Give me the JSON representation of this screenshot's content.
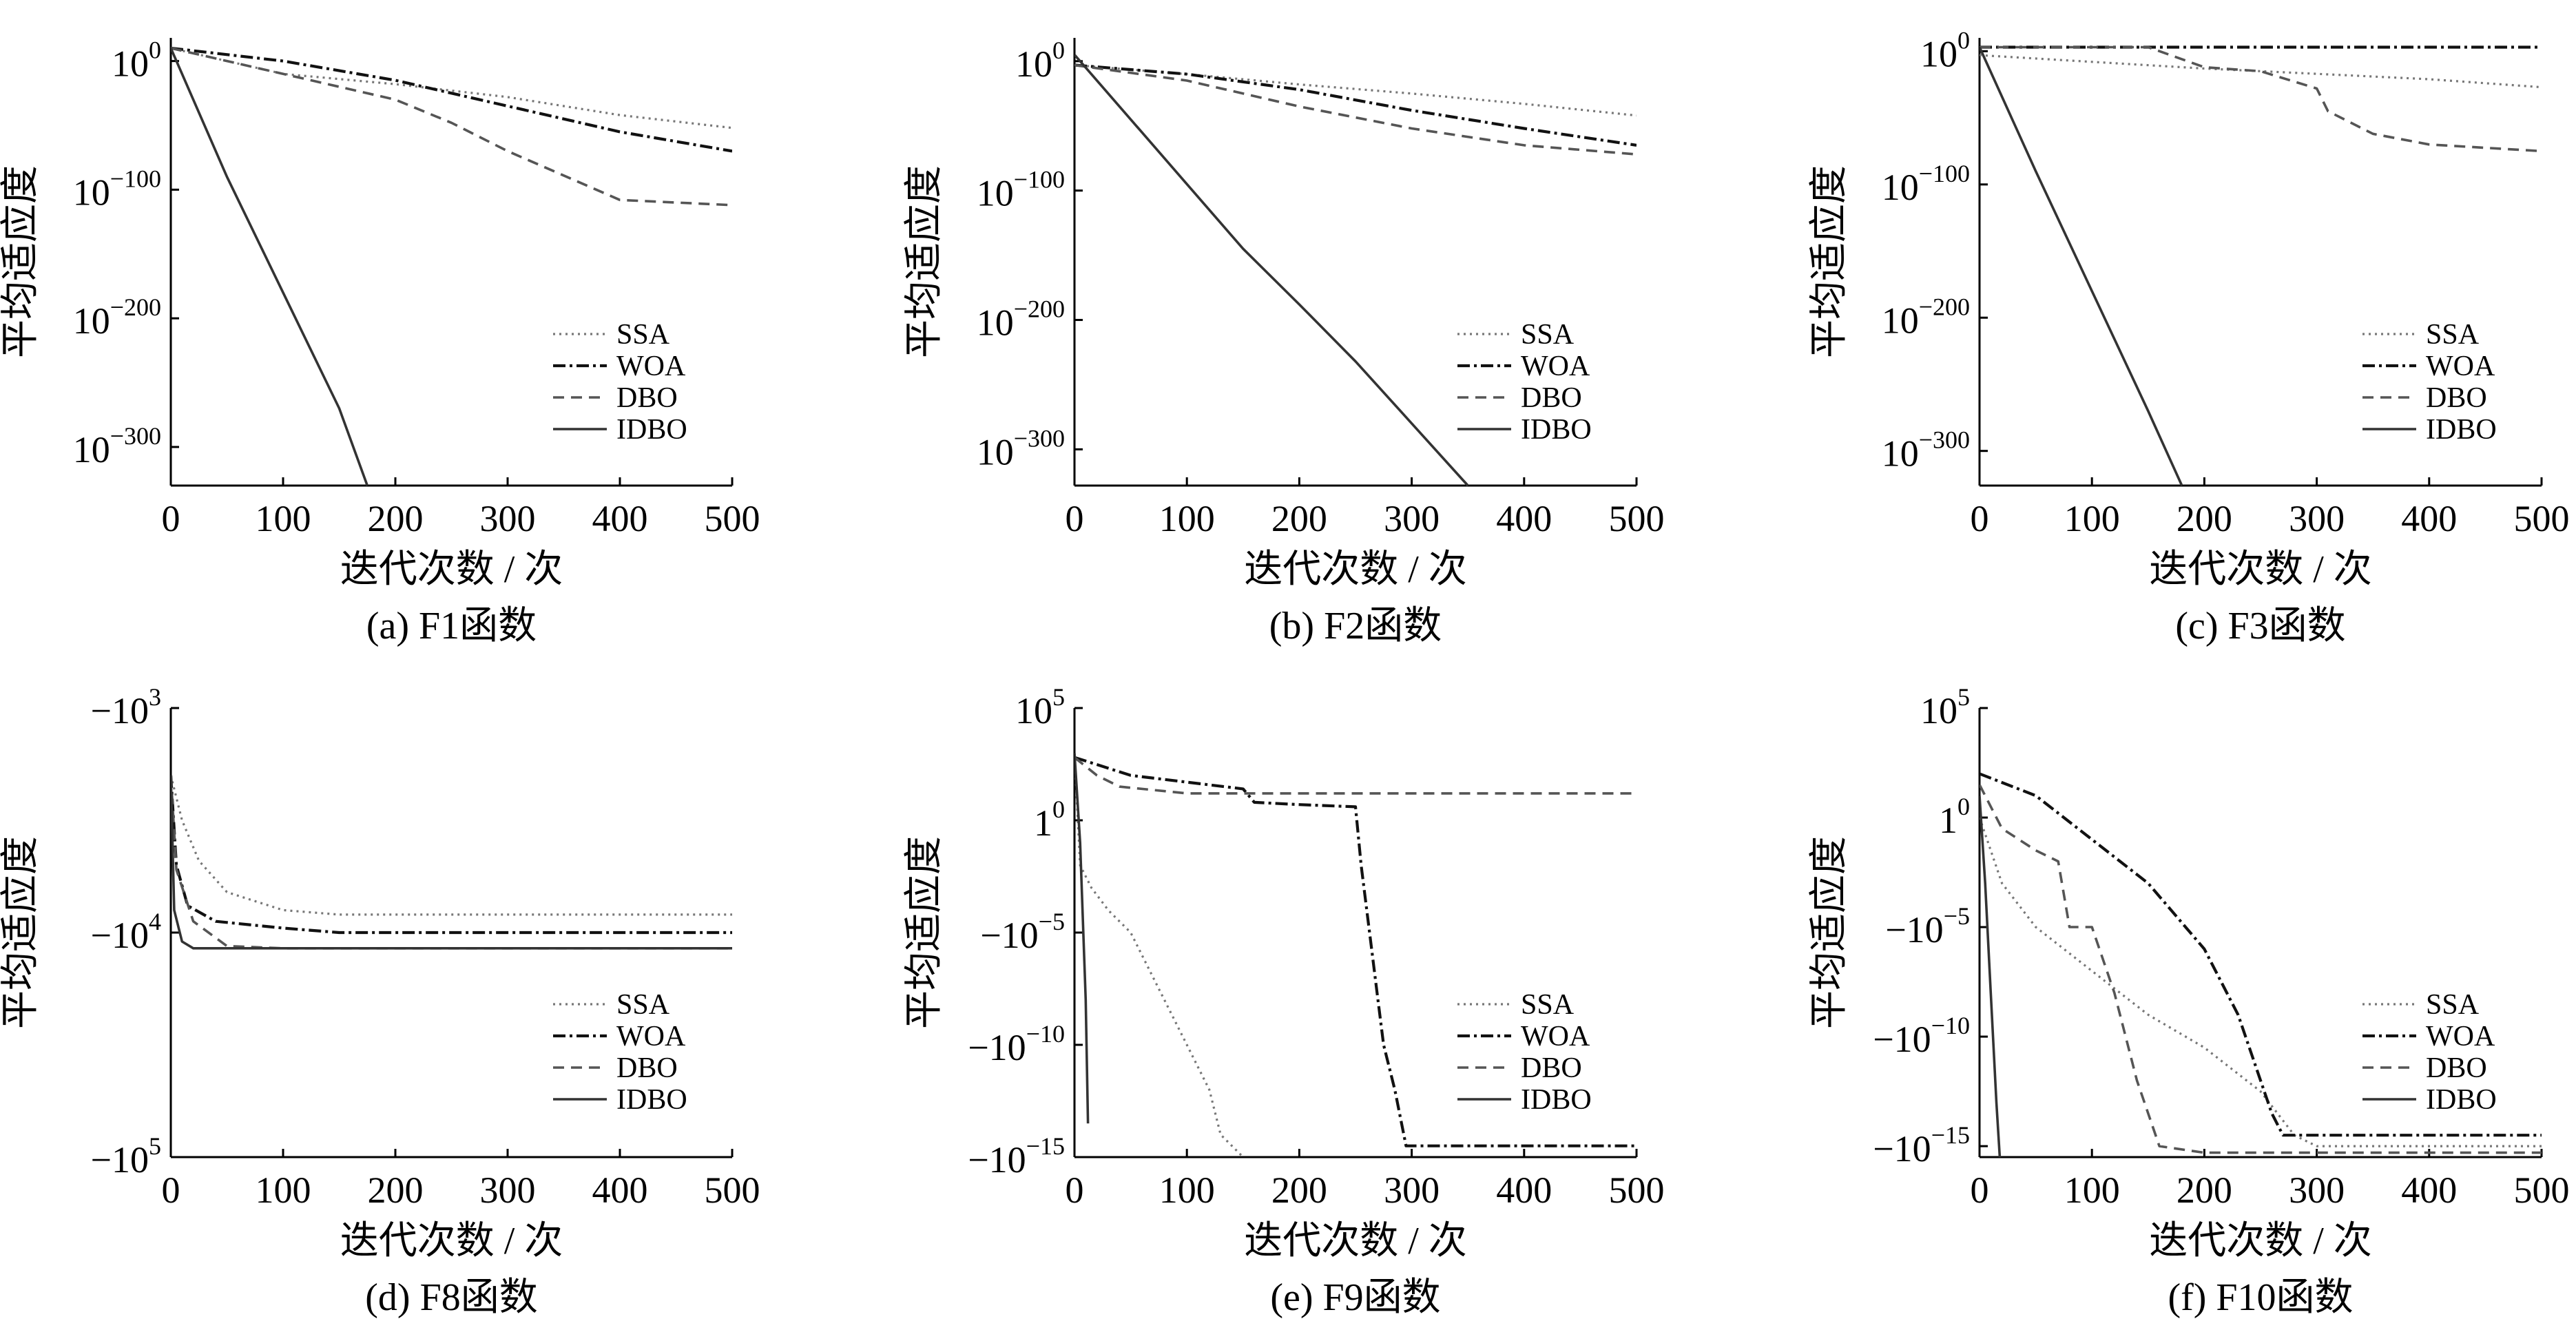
{
  "figure": {
    "y_label": "平均适应度",
    "x_label": "迭代次数 / 次"
  },
  "chart_data": [
    {
      "id": "a",
      "type": "line",
      "title": "(a)  F1函数",
      "yscale": "log",
      "ylim": [
        -330,
        18
      ],
      "y_ticks": [
        {
          "v": 0,
          "base": "10",
          "exp": "0"
        },
        {
          "v": -100,
          "base": "10",
          "exp": "−100"
        },
        {
          "v": -200,
          "base": "10",
          "exp": "−200"
        },
        {
          "v": -300,
          "base": "10",
          "exp": "−300"
        }
      ],
      "xlim": [
        0,
        500
      ],
      "x_ticks": [
        0,
        100,
        200,
        300,
        400,
        500
      ],
      "legend": [
        "SSA",
        "WOA",
        "DBO",
        "IDBO"
      ],
      "series": [
        {
          "name": "SSA",
          "style": "dotted",
          "points": [
            [
              0,
              10
            ],
            [
              100,
              -10
            ],
            [
              200,
              -18
            ],
            [
              300,
              -28
            ],
            [
              400,
              -42
            ],
            [
              500,
              -52
            ]
          ]
        },
        {
          "name": "WOA",
          "style": "dashdot",
          "points": [
            [
              0,
              10
            ],
            [
              100,
              0
            ],
            [
              200,
              -15
            ],
            [
              300,
              -35
            ],
            [
              400,
              -55
            ],
            [
              500,
              -70
            ]
          ]
        },
        {
          "name": "DBO",
          "style": "dashed",
          "points": [
            [
              0,
              10
            ],
            [
              100,
              -10
            ],
            [
              200,
              -30
            ],
            [
              250,
              -48
            ],
            [
              300,
              -70
            ],
            [
              400,
              -108
            ],
            [
              500,
              -112
            ]
          ]
        },
        {
          "name": "IDBO",
          "style": "solid",
          "points": [
            [
              0,
              10
            ],
            [
              50,
              -90
            ],
            [
              100,
              -180
            ],
            [
              150,
              -270
            ],
            [
              175,
              -330
            ]
          ]
        }
      ]
    },
    {
      "id": "b",
      "type": "line",
      "title": "(b)  F2函数",
      "yscale": "log",
      "ylim": [
        -328,
        18
      ],
      "y_ticks": [
        {
          "v": 0,
          "base": "10",
          "exp": "0"
        },
        {
          "v": -100,
          "base": "10",
          "exp": "−100"
        },
        {
          "v": -200,
          "base": "10",
          "exp": "−200"
        },
        {
          "v": -300,
          "base": "10",
          "exp": "−300"
        }
      ],
      "xlim": [
        0,
        500
      ],
      "x_ticks": [
        0,
        100,
        200,
        300,
        400,
        500
      ],
      "legend": [
        "SSA",
        "WOA",
        "DBO",
        "IDBO"
      ],
      "series": [
        {
          "name": "SSA",
          "style": "dotted",
          "points": [
            [
              0,
              -3
            ],
            [
              100,
              -10
            ],
            [
              200,
              -18
            ],
            [
              300,
              -25
            ],
            [
              400,
              -33
            ],
            [
              500,
              -42
            ]
          ]
        },
        {
          "name": "WOA",
          "style": "dashdot",
          "points": [
            [
              0,
              -3
            ],
            [
              100,
              -10
            ],
            [
              200,
              -22
            ],
            [
              300,
              -38
            ],
            [
              400,
              -52
            ],
            [
              500,
              -65
            ]
          ]
        },
        {
          "name": "DBO",
          "style": "dashed",
          "points": [
            [
              0,
              -3
            ],
            [
              100,
              -15
            ],
            [
              200,
              -35
            ],
            [
              300,
              -52
            ],
            [
              400,
              -65
            ],
            [
              500,
              -72
            ]
          ]
        },
        {
          "name": "IDBO",
          "style": "solid",
          "points": [
            [
              0,
              5
            ],
            [
              100,
              -95
            ],
            [
              150,
              -145
            ],
            [
              200,
              -188
            ],
            [
              250,
              -232
            ],
            [
              300,
              -280
            ],
            [
              350,
              -328
            ]
          ]
        }
      ]
    },
    {
      "id": "c",
      "type": "line",
      "title": "(c)  F3函数",
      "yscale": "log",
      "ylim": [
        -326,
        10
      ],
      "y_ticks": [
        {
          "v": 0,
          "base": "10",
          "exp": "0"
        },
        {
          "v": -100,
          "base": "10",
          "exp": "−100"
        },
        {
          "v": -200,
          "base": "10",
          "exp": "−200"
        },
        {
          "v": -300,
          "base": "10",
          "exp": "−300"
        }
      ],
      "xlim": [
        0,
        500
      ],
      "x_ticks": [
        0,
        100,
        200,
        300,
        400,
        500
      ],
      "legend": [
        "SSA",
        "WOA",
        "DBO",
        "IDBO"
      ],
      "series": [
        {
          "name": "SSA",
          "style": "dotted",
          "points": [
            [
              0,
              -3
            ],
            [
              100,
              -8
            ],
            [
              200,
              -13
            ],
            [
              300,
              -17
            ],
            [
              400,
              -21
            ],
            [
              500,
              -27
            ]
          ]
        },
        {
          "name": "WOA",
          "style": "dashdot",
          "points": [
            [
              0,
              3
            ],
            [
              500,
              3
            ]
          ]
        },
        {
          "name": "DBO",
          "style": "dashed",
          "points": [
            [
              0,
              3
            ],
            [
              150,
              3
            ],
            [
              200,
              -12
            ],
            [
              250,
              -15
            ],
            [
              300,
              -28
            ],
            [
              310,
              -45
            ],
            [
              350,
              -62
            ],
            [
              400,
              -70
            ],
            [
              500,
              -75
            ]
          ]
        },
        {
          "name": "IDBO",
          "style": "solid",
          "points": [
            [
              0,
              3
            ],
            [
              50,
              -90
            ],
            [
              100,
              -180
            ],
            [
              150,
              -270
            ],
            [
              180,
              -326
            ]
          ]
        }
      ]
    },
    {
      "id": "d",
      "type": "line",
      "title": "(d)  F8函数",
      "yscale": "log-negative",
      "ylim": [
        -5,
        -3
      ],
      "y_ticks": [
        {
          "v": -3,
          "base": "−10",
          "exp": "3"
        },
        {
          "v": -4,
          "base": "−10",
          "exp": "4"
        },
        {
          "v": -5,
          "base": "−10",
          "exp": "5"
        }
      ],
      "xlim": [
        0,
        500
      ],
      "x_ticks": [
        0,
        100,
        200,
        300,
        400,
        500
      ],
      "legend": [
        "SSA",
        "WOA",
        "DBO",
        "IDBO"
      ],
      "series": [
        {
          "name": "SSA",
          "style": "dotted",
          "points": [
            [
              0,
              -3.3
            ],
            [
              10,
              -3.5
            ],
            [
              25,
              -3.68
            ],
            [
              50,
              -3.82
            ],
            [
              100,
              -3.9
            ],
            [
              150,
              -3.92
            ],
            [
              500,
              -3.92
            ]
          ]
        },
        {
          "name": "WOA",
          "style": "dashdot",
          "points": [
            [
              0,
              -3.3
            ],
            [
              5,
              -3.7
            ],
            [
              15,
              -3.88
            ],
            [
              40,
              -3.95
            ],
            [
              100,
              -3.98
            ],
            [
              150,
              -4.0
            ],
            [
              500,
              -4.0
            ]
          ]
        },
        {
          "name": "DBO",
          "style": "dashed",
          "points": [
            [
              0,
              -3.3
            ],
            [
              5,
              -3.72
            ],
            [
              20,
              -3.95
            ],
            [
              50,
              -4.06
            ],
            [
              100,
              -4.07
            ],
            [
              500,
              -4.07
            ]
          ]
        },
        {
          "name": "IDBO",
          "style": "solid",
          "points": [
            [
              0,
              -3.3
            ],
            [
              3,
              -3.9
            ],
            [
              10,
              -4.04
            ],
            [
              20,
              -4.07
            ],
            [
              500,
              -4.07
            ]
          ]
        }
      ]
    },
    {
      "id": "e",
      "type": "line",
      "title": "(e)  F9函数",
      "yscale": "symlog",
      "ylim": [
        -15,
        5
      ],
      "y_ticks": [
        {
          "v": 5,
          "base": "10",
          "exp": "5"
        },
        {
          "v": 0,
          "base": "1",
          "exp": "0"
        },
        {
          "v": -5,
          "base": "−10",
          "exp": "−5"
        },
        {
          "v": -10,
          "base": "−10",
          "exp": "−10"
        },
        {
          "v": -15,
          "base": "−10",
          "exp": "−15"
        }
      ],
      "xlim": [
        0,
        500
      ],
      "x_ticks": [
        0,
        100,
        200,
        300,
        400,
        500
      ],
      "legend": [
        "SSA",
        "WOA",
        "DBO",
        "IDBO"
      ],
      "series": [
        {
          "name": "SSA",
          "style": "dotted",
          "points": [
            [
              0,
              3
            ],
            [
              5,
              -2
            ],
            [
              15,
              -3
            ],
            [
              30,
              -4
            ],
            [
              50,
              -5
            ],
            [
              70,
              -7
            ],
            [
              90,
              -9
            ],
            [
              110,
              -11
            ],
            [
              120,
              -12
            ],
            [
              130,
              -14
            ],
            [
              150,
              -15
            ]
          ]
        },
        {
          "name": "WOA",
          "style": "dashdot",
          "points": [
            [
              0,
              2.8
            ],
            [
              50,
              2
            ],
            [
              100,
              1.7
            ],
            [
              150,
              1.4
            ],
            [
              160,
              0.8
            ],
            [
              200,
              0.7
            ],
            [
              250,
              0.6
            ],
            [
              255,
              -2
            ],
            [
              265,
              -6
            ],
            [
              270,
              -8
            ],
            [
              275,
              -10
            ],
            [
              285,
              -12
            ],
            [
              295,
              -14.5
            ],
            [
              500,
              -14.5
            ]
          ]
        },
        {
          "name": "DBO",
          "style": "dashed",
          "points": [
            [
              0,
              2.8
            ],
            [
              20,
              2
            ],
            [
              40,
              1.5
            ],
            [
              100,
              1.2
            ],
            [
              150,
              1.2
            ],
            [
              500,
              1.2
            ]
          ]
        },
        {
          "name": "IDBO",
          "style": "solid",
          "points": [
            [
              0,
              3
            ],
            [
              5,
              -1
            ],
            [
              10,
              -8
            ],
            [
              12,
              -13.5
            ]
          ]
        }
      ]
    },
    {
      "id": "f",
      "type": "line",
      "title": "(f)  F10函数",
      "yscale": "symlog",
      "ylim": [
        -15.5,
        5
      ],
      "y_ticks": [
        {
          "v": 5,
          "base": "10",
          "exp": "5"
        },
        {
          "v": 0,
          "base": "1",
          "exp": "0"
        },
        {
          "v": -5,
          "base": "−10",
          "exp": "−5"
        },
        {
          "v": -10,
          "base": "−10",
          "exp": "−10"
        },
        {
          "v": -15,
          "base": "−10",
          "exp": "−15"
        }
      ],
      "xlim": [
        0,
        500
      ],
      "x_ticks": [
        0,
        100,
        200,
        300,
        400,
        500
      ],
      "legend": [
        "SSA",
        "WOA",
        "DBO",
        "IDBO"
      ],
      "series": [
        {
          "name": "SSA",
          "style": "dotted",
          "points": [
            [
              0,
              0
            ],
            [
              20,
              -3
            ],
            [
              50,
              -5
            ],
            [
              100,
              -7
            ],
            [
              150,
              -9
            ],
            [
              200,
              -10.5
            ],
            [
              250,
              -12.5
            ],
            [
              280,
              -14.5
            ],
            [
              300,
              -15
            ],
            [
              500,
              -15
            ]
          ]
        },
        {
          "name": "WOA",
          "style": "dashdot",
          "points": [
            [
              0,
              2
            ],
            [
              50,
              1
            ],
            [
              100,
              -1
            ],
            [
              150,
              -3
            ],
            [
              200,
              -6
            ],
            [
              230,
              -9
            ],
            [
              260,
              -13.5
            ],
            [
              270,
              -14.5
            ],
            [
              500,
              -14.5
            ]
          ]
        },
        {
          "name": "DBO",
          "style": "dashed",
          "points": [
            [
              0,
              1.5
            ],
            [
              20,
              -0.5
            ],
            [
              50,
              -1.5
            ],
            [
              70,
              -2
            ],
            [
              80,
              -5
            ],
            [
              100,
              -5
            ],
            [
              120,
              -8
            ],
            [
              140,
              -12
            ],
            [
              160,
              -15
            ],
            [
              200,
              -15.3
            ],
            [
              500,
              -15.3
            ]
          ]
        },
        {
          "name": "IDBO",
          "style": "solid",
          "points": [
            [
              0,
              1
            ],
            [
              5,
              -3
            ],
            [
              10,
              -8
            ],
            [
              15,
              -13
            ],
            [
              18,
              -15.5
            ]
          ]
        }
      ]
    }
  ]
}
